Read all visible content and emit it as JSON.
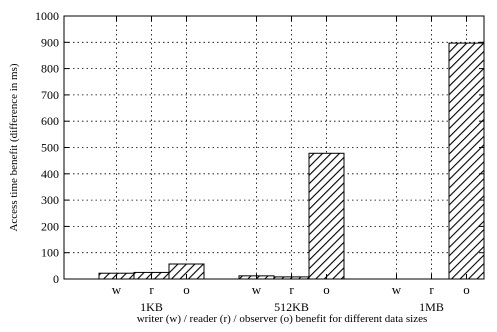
{
  "chart_data": {
    "type": "bar",
    "xlabel": "writer (w) / reader (r) / observer (o) benefit for different data sizes",
    "ylabel": "Access time benefit (difference in ms)",
    "ylim": [
      0,
      1000
    ],
    "yticks": [
      0,
      100,
      200,
      300,
      400,
      500,
      600,
      700,
      800,
      900,
      1000
    ],
    "grid": true,
    "groups": [
      {
        "label": "1KB",
        "bars": [
          {
            "label": "w",
            "value": 22
          },
          {
            "label": "r",
            "value": 25
          },
          {
            "label": "o",
            "value": 57
          }
        ]
      },
      {
        "label": "512KB",
        "bars": [
          {
            "label": "w",
            "value": 12
          },
          {
            "label": "r",
            "value": 8
          },
          {
            "label": "o",
            "value": 478
          }
        ]
      },
      {
        "label": "1MB",
        "bars": [
          {
            "label": "w",
            "value": 0
          },
          {
            "label": "r",
            "value": 0
          },
          {
            "label": "o",
            "value": 897
          }
        ]
      }
    ]
  }
}
